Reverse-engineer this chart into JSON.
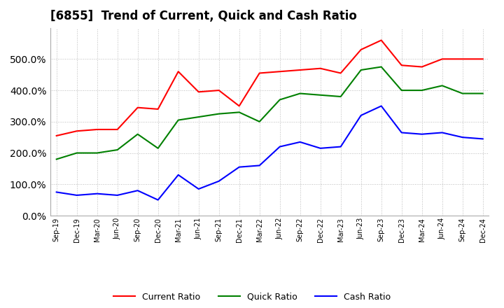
{
  "title": "[6855]  Trend of Current, Quick and Cash Ratio",
  "x_labels": [
    "Sep-19",
    "Dec-19",
    "Mar-20",
    "Jun-20",
    "Sep-20",
    "Dec-20",
    "Mar-21",
    "Jun-21",
    "Sep-21",
    "Dec-21",
    "Mar-22",
    "Jun-22",
    "Sep-22",
    "Dec-22",
    "Mar-23",
    "Jun-23",
    "Sep-23",
    "Dec-23",
    "Mar-24",
    "Jun-24",
    "Sep-24",
    "Dec-24"
  ],
  "current_ratio": [
    255,
    270,
    275,
    275,
    345,
    340,
    460,
    395,
    400,
    350,
    455,
    460,
    465,
    470,
    455,
    530,
    560,
    480,
    475,
    500,
    500,
    500
  ],
  "quick_ratio": [
    180,
    200,
    200,
    210,
    260,
    215,
    305,
    315,
    325,
    330,
    300,
    370,
    390,
    385,
    380,
    465,
    475,
    400,
    400,
    415,
    390,
    390
  ],
  "cash_ratio": [
    75,
    65,
    70,
    65,
    80,
    50,
    130,
    85,
    110,
    155,
    160,
    220,
    235,
    215,
    220,
    320,
    350,
    265,
    260,
    265,
    250,
    245
  ],
  "current_color": "#FF0000",
  "quick_color": "#008000",
  "cash_color": "#0000FF",
  "ylim": [
    0,
    600
  ],
  "yticks": [
    0,
    100,
    200,
    300,
    400,
    500
  ],
  "background_color": "#FFFFFF",
  "grid_color": "#AAAAAA",
  "title_fontsize": 12
}
